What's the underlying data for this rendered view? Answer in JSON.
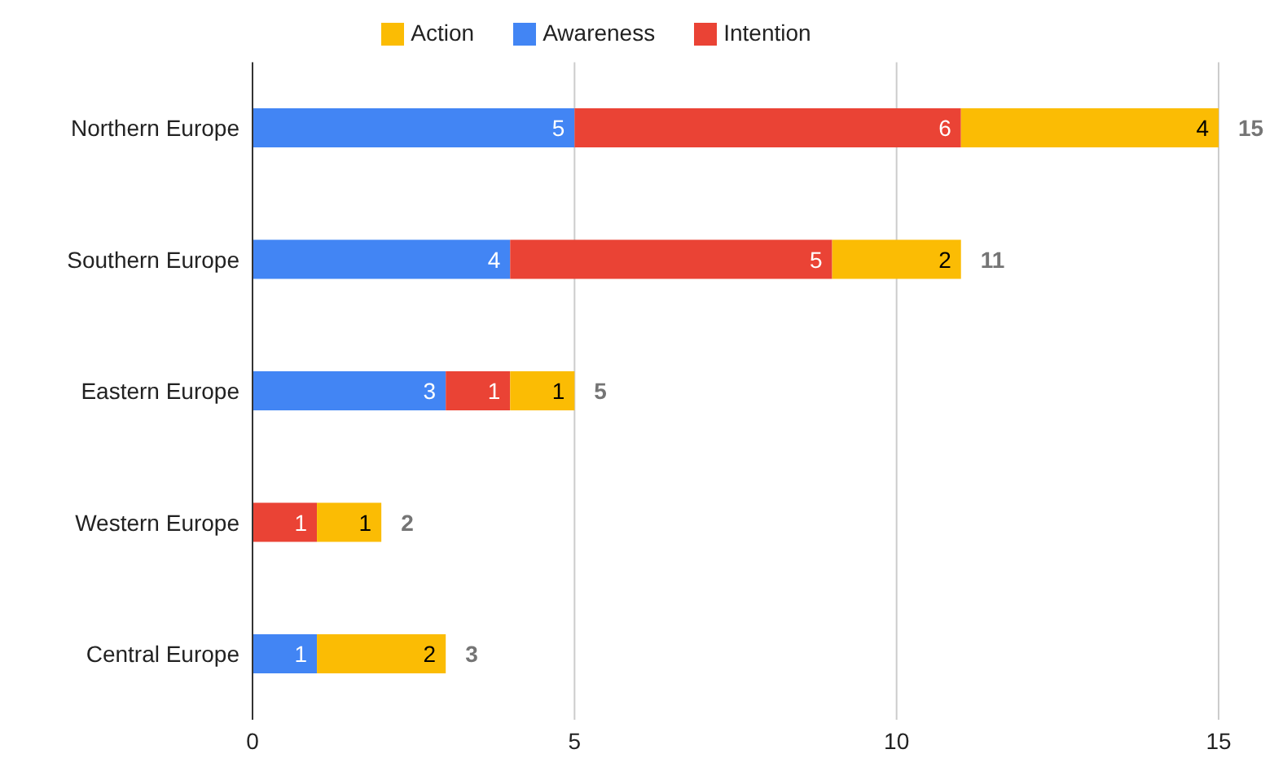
{
  "chart_data": {
    "type": "bar",
    "orientation": "horizontal",
    "stacked": true,
    "categories": [
      "Northern Europe",
      "Southern Europe",
      "Eastern Europe",
      "Western Europe",
      "Central Europe"
    ],
    "series": [
      {
        "name": "Awareness",
        "color": "#4285f4",
        "values": [
          5,
          4,
          3,
          null,
          1
        ]
      },
      {
        "name": "Intention",
        "color": "#ea4335",
        "values": [
          6,
          5,
          1,
          1,
          null
        ]
      },
      {
        "name": "Action",
        "color": "#fbbc04",
        "values": [
          4,
          2,
          1,
          1,
          2
        ]
      }
    ],
    "totals": [
      "15",
      "11",
      "5",
      "2",
      "3"
    ],
    "data_labels": true,
    "xlim": [
      0,
      15
    ],
    "xticks": [
      0,
      5,
      10,
      15
    ],
    "grid": "x",
    "legend": "top"
  }
}
